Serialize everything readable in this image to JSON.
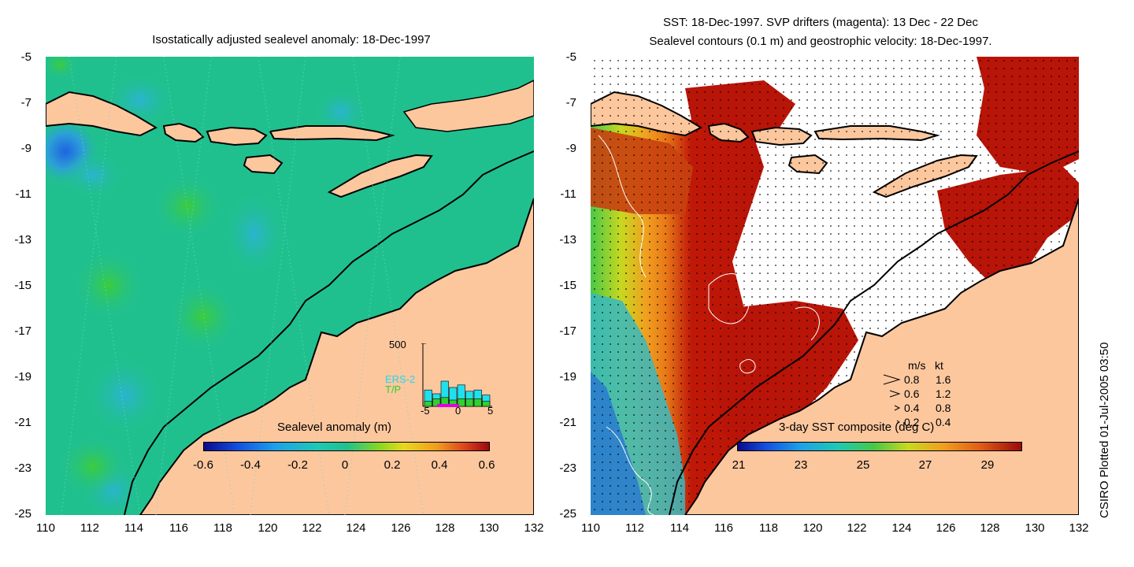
{
  "left_panel": {
    "title": "Isostatically adjusted sealevel anomaly: 18-Dec-1997",
    "colorbar_label": "Sealevel anomaly (m)",
    "colorbar_ticks": [
      "-0.6",
      "-0.4",
      "-0.2",
      "0",
      "0.2",
      "0.4",
      "0.6"
    ],
    "inset": {
      "y_tick": "500",
      "series_1": "ERS-2",
      "series_2": "T/P",
      "x_ticks": [
        "-5",
        "0",
        "5"
      ],
      "ers2_counts": [
        130,
        100,
        200,
        150,
        170,
        120,
        130,
        90
      ],
      "tp_counts": [
        40,
        60,
        70,
        50,
        60,
        60,
        60,
        40
      ]
    }
  },
  "right_panel": {
    "title_line1": "SST: 18-Dec-1997. SVP drifters (magenta): 13 Dec - 22 Dec",
    "title_line2": "Sealevel contours (0.1 m) and geostrophic velocity: 18-Dec-1997.",
    "colorbar_label": "3-day SST composite (deg C)",
    "colorbar_ticks": [
      "21",
      "23",
      "25",
      "27",
      "29"
    ],
    "velocity_legend": {
      "header_ms": "m/s",
      "header_kt": "kt",
      "rows": [
        {
          "ms": "0.8",
          "kt": "1.6"
        },
        {
          "ms": "0.6",
          "kt": "1.2"
        },
        {
          "ms": "0.4",
          "kt": "0.8"
        },
        {
          "ms": "0.2",
          "kt": "0.4"
        }
      ]
    }
  },
  "axes": {
    "y_ticks": [
      "-5",
      "-7",
      "-9",
      "-11",
      "-13",
      "-15",
      "-17",
      "-19",
      "-21",
      "-23",
      "-25"
    ],
    "x_ticks": [
      "110",
      "112",
      "114",
      "116",
      "118",
      "120",
      "122",
      "124",
      "126",
      "128",
      "130",
      "132"
    ],
    "lat_range": [
      -25,
      -5
    ],
    "lon_range": [
      110,
      132
    ]
  },
  "credit": "CSIRO Plotted 01-Jul-2005 03:50",
  "colors": {
    "land": "#fdc79e",
    "ocean_green": "#21c18a",
    "ocean_teal": "#1ebe9c",
    "sst_dark_red": "#b81408",
    "sst_orange": "#f08a1e"
  }
}
